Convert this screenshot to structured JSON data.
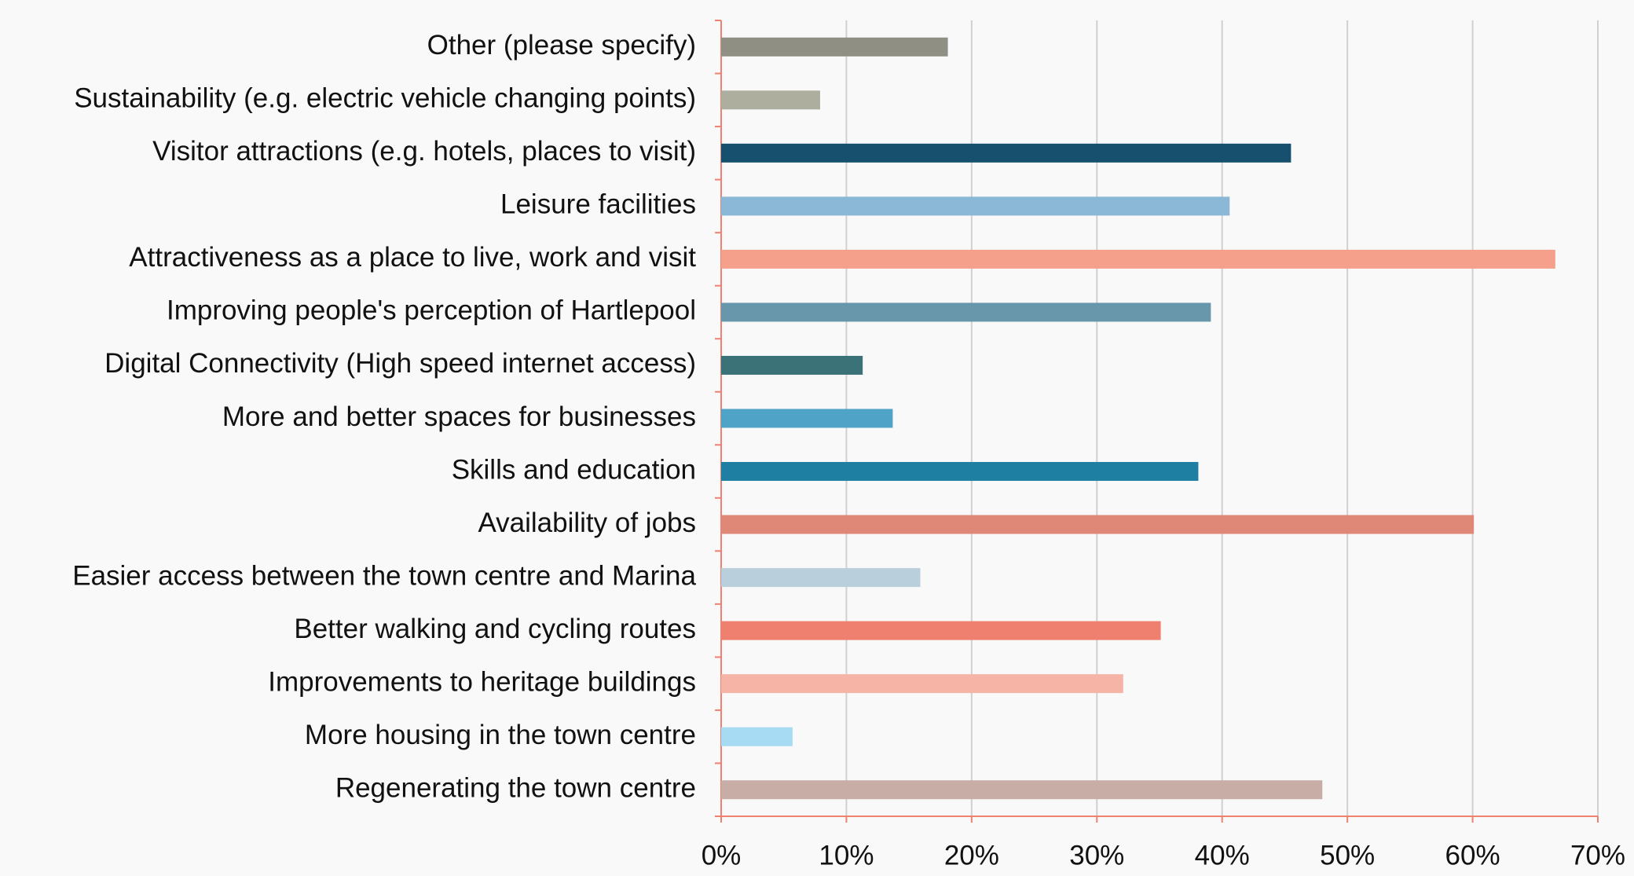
{
  "chart_data": {
    "type": "barh",
    "categories": [
      "Other (please specify)",
      "Sustainability (e.g. electric vehicle changing points)",
      "Visitor attractions (e.g. hotels, places to visit)",
      "Leisure facilities",
      "Attractiveness as a place to live, work and visit",
      "Improving people's perception of Hartlepool",
      "Digital Connectivity (High speed internet access)",
      "More and better spaces for businesses",
      "Skills and education",
      "Availability of jobs",
      "Easier access between the town centre and Marina",
      "Better walking and cycling routes",
      "Improvements to heritage buildings",
      "More housing in the town centre",
      "Regenerating the town centre"
    ],
    "values": [
      18.1,
      7.9,
      45.5,
      40.6,
      66.6,
      39.1,
      11.3,
      13.7,
      38.1,
      60.1,
      15.9,
      35.1,
      32.1,
      5.7,
      48.0
    ],
    "colors": [
      "#8f8f83",
      "#aeae9f",
      "#17506e",
      "#8ab8d6",
      "#f4a08a",
      "#6896aa",
      "#3a7277",
      "#4fa3c6",
      "#1f7fa3",
      "#e08878",
      "#b9cfdc",
      "#ef7f6e",
      "#f6b4a6",
      "#a6dbf3",
      "#c8aca6"
    ],
    "xlim": [
      0,
      70
    ],
    "xticks": [
      {
        "value": 0,
        "label": "0%"
      },
      {
        "value": 10,
        "label": "10%"
      },
      {
        "value": 20,
        "label": "20%"
      },
      {
        "value": 30,
        "label": "30%"
      },
      {
        "value": 40,
        "label": "40%"
      },
      {
        "value": 50,
        "label": "50%"
      },
      {
        "value": 60,
        "label": "60%"
      },
      {
        "value": 70,
        "label": "70%"
      }
    ],
    "grid": true
  }
}
